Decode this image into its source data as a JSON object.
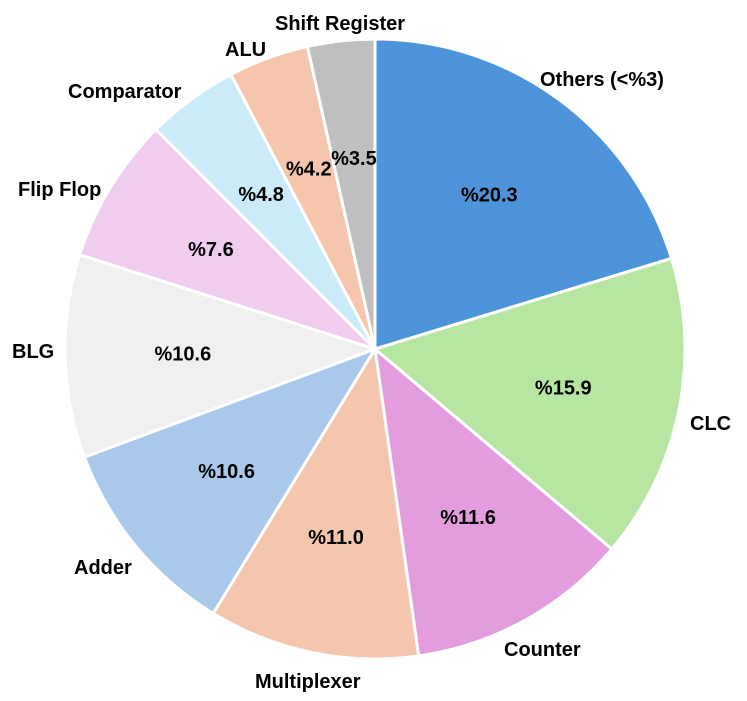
{
  "chart_data": {
    "type": "pie",
    "start_angle_deg": 0,
    "direction": "clockwise",
    "slices": [
      {
        "label": "Others (<%3)",
        "value": 20.3,
        "value_label": "%20.3",
        "color": "#4E94DA"
      },
      {
        "label": "CLC",
        "value": 15.9,
        "value_label": "%15.9",
        "color": "#B6E6A1"
      },
      {
        "label": "Counter",
        "value": 11.6,
        "value_label": "%11.6",
        "color": "#E39DDF"
      },
      {
        "label": "Multiplexer",
        "value": 11.0,
        "value_label": "%11.0",
        "color": "#F4C6AD"
      },
      {
        "label": "Adder",
        "value": 10.6,
        "value_label": "%10.6",
        "color": "#A9C8EA"
      },
      {
        "label": "BLG",
        "value": 10.6,
        "value_label": "%10.6",
        "color": "#F0F0F0"
      },
      {
        "label": "Flip Flop",
        "value": 7.6,
        "value_label": "%7.6",
        "color": "#F0CDEE"
      },
      {
        "label": "Comparator",
        "value": 4.8,
        "value_label": "%4.8",
        "color": "#CBEBF9"
      },
      {
        "label": "ALU",
        "value": 4.2,
        "value_label": "%4.2",
        "color": "#F5C6AB"
      },
      {
        "label": "Shift Register",
        "value": 3.5,
        "value_label": "%3.5",
        "color": "#BFBFBF"
      }
    ]
  }
}
